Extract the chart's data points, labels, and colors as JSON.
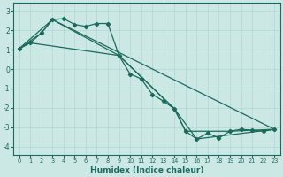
{
  "xlabel": "Humidex (Indice chaleur)",
  "bg_color": "#cce8e4",
  "line_color": "#1a6b5a",
  "grid_color": "#b0d8d0",
  "xlim": [
    -0.5,
    23.5
  ],
  "ylim": [
    -4.4,
    3.4
  ],
  "yticks": [
    -4,
    -3,
    -2,
    -1,
    0,
    1,
    2,
    3
  ],
  "xticks": [
    0,
    1,
    2,
    3,
    4,
    5,
    6,
    7,
    8,
    9,
    10,
    11,
    12,
    13,
    14,
    15,
    16,
    17,
    18,
    19,
    20,
    21,
    22,
    23
  ],
  "line1_x": [
    0,
    1,
    2,
    3,
    4,
    5,
    6,
    7,
    8,
    9,
    10,
    11,
    12,
    13,
    14,
    15,
    16,
    17,
    18,
    19,
    20,
    21,
    22,
    23
  ],
  "line1_y": [
    1.05,
    1.35,
    1.85,
    2.55,
    2.6,
    2.3,
    2.2,
    2.35,
    2.35,
    0.7,
    -0.25,
    -0.5,
    -1.3,
    -1.65,
    -2.05,
    -3.2,
    -3.6,
    -3.3,
    -3.55,
    -3.2,
    -3.1,
    -3.15,
    -3.2,
    -3.1
  ],
  "line2_x": [
    0,
    2,
    3,
    9,
    14,
    15,
    19,
    23
  ],
  "line2_y": [
    1.05,
    1.85,
    2.55,
    0.7,
    -2.05,
    -3.2,
    -3.2,
    -3.1
  ],
  "line3_x": [
    0,
    3,
    23
  ],
  "line3_y": [
    1.05,
    2.55,
    -3.1
  ],
  "line4_x": [
    0,
    1,
    9,
    14,
    16,
    23
  ],
  "line4_y": [
    1.05,
    1.35,
    0.7,
    -2.05,
    -3.6,
    -3.1
  ]
}
